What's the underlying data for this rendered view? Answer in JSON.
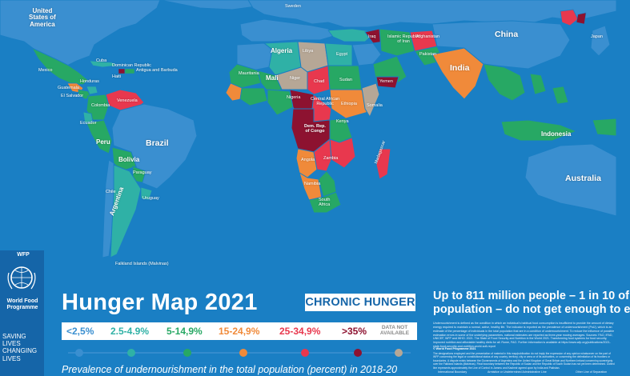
{
  "title": "Hunger Map 2021",
  "badge": "CHRONIC HUNGER",
  "caption": "Prevalence of undernourishment in the total population (percent) in 2018-20",
  "headline": {
    "line1": "Up to 811 million people – 1 in 10 of",
    "line2": "population – do not get enough to e"
  },
  "body_text": "Undernourishment is defined as the condition in which an individual's habitual food consumption is insufficient to provide the amount of dietary energy required to maintain a normal, active, healthy life. The indicator is reported as the prevalence of undernourishment (PoU), which is an estimate of the percentage of individuals in the total population that are in a condition of undernourishment. To reduce the influence of possible estimation errors in some of the underlying parameters, national estimates are reported as three-year moving averages. Sources: FAO, IFAD, UNICEF, WFP and WHO. 2021. The State of Food Security and Nutrition in the World 2021. Transforming food systems for food security, improved nutrition and affordable healthy diets for all. Rome, FAO. Further information is available at https://www.wfp.org/publications/2021-state-food-security-and-nutrition-world-sofi-report",
  "wfp_credit": "© World Food Programme 2021",
  "disclaimer": "The designations employed and the presentation of material in this map/publication do not imply the expression of any opinion whatsoever on the part of WFP concerning the legal or constitutional status of any country, territory, city or area or of its authorities, or concerning the delimitation of its frontiers or boundaries. A dispute exists between the Governments of Argentina and the United Kingdom of Great Britain and Northern Ireland concerning sovereignty over the Falkland Islands (Malvinas). Final boundary between the Republic of Sudan and the Republic of South Sudan has not yet been determined. Dotted line represents approximately the Line of Control in Jammu and Kashmir agreed upon by India and Pakistan.",
  "boundary_legend": [
    "International Boundary",
    "Armistice or Undetermined Administrative Line",
    "Other Line of Separation"
  ],
  "wfp": {
    "abbr": "WFP",
    "name_line1": "World Food",
    "name_line2": "Programme",
    "slogan": [
      "SAVING",
      "LIVES",
      "CHANGING",
      "LIVES"
    ]
  },
  "legend": [
    {
      "label": "<2,5%",
      "color": "#3a8fd0"
    },
    {
      "label": "2.5-4.9%",
      "color": "#2fb1a6"
    },
    {
      "label": "5-14,9%",
      "color": "#27a864"
    },
    {
      "label": "15-24,9%",
      "color": "#f08a3a"
    },
    {
      "label": "25-34,9%",
      "color": "#e8384e"
    },
    {
      "label": ">35%",
      "color": "#8d1230"
    },
    {
      "label": "DATA NOT AVAILABLE",
      "color": "#b6a796"
    }
  ],
  "map_labels": {
    "usa": [
      "United",
      "States of",
      "America"
    ],
    "mexico": "Mexico",
    "guatemala": "Guatemala",
    "el_salvador": "El Salvador",
    "honduras": "Honduras",
    "cuba": "Cuba",
    "dominican_republic": "Dominican Republic",
    "haiti": "Haiti",
    "antigua": [
      "Antigua and Barbuda"
    ],
    "venezuela": "Venezuela",
    "colombia": "Colombia",
    "ecuador": "Ecuador",
    "peru": "Peru",
    "brazil": "Brazil",
    "bolivia": "Bolivia",
    "paraguay": "Paraguay",
    "uruguay": "Uruguay",
    "chile": "Chile",
    "argentina": "Argentina",
    "falklands": "Falkland Islands (Malvinas)",
    "sweden": "Sweden",
    "iraq": "Iraq",
    "iran": [
      "Islamic Republic",
      "of Iran"
    ],
    "afghanistan": "Afghanistan",
    "pakistan": "Pakistan",
    "india": "India",
    "china": "China",
    "japan": "Japan",
    "algeria": "Algeria",
    "libya": "Libya",
    "egypt": "Egypt",
    "mali": "Mali",
    "niger": "Niger",
    "chad": "Chad",
    "sudan": "Sudan",
    "mauritania": "Mauritania",
    "nigeria": "Nigeria",
    "ethiopia": "Ethiopia",
    "somalia": "Somalia",
    "kenya": "Kenya",
    "car": [
      "Central African",
      "Republic"
    ],
    "drc": [
      "Dem. Rep.",
      "of Congo"
    ],
    "angola": "Angola",
    "zambia": "Zambia",
    "namibia": "Namibia",
    "south_africa": [
      "South",
      "Africa"
    ],
    "madagascar": "Madagascar",
    "indonesia": "Indonesia",
    "australia": "Australia",
    "yemen": "Yemen"
  }
}
